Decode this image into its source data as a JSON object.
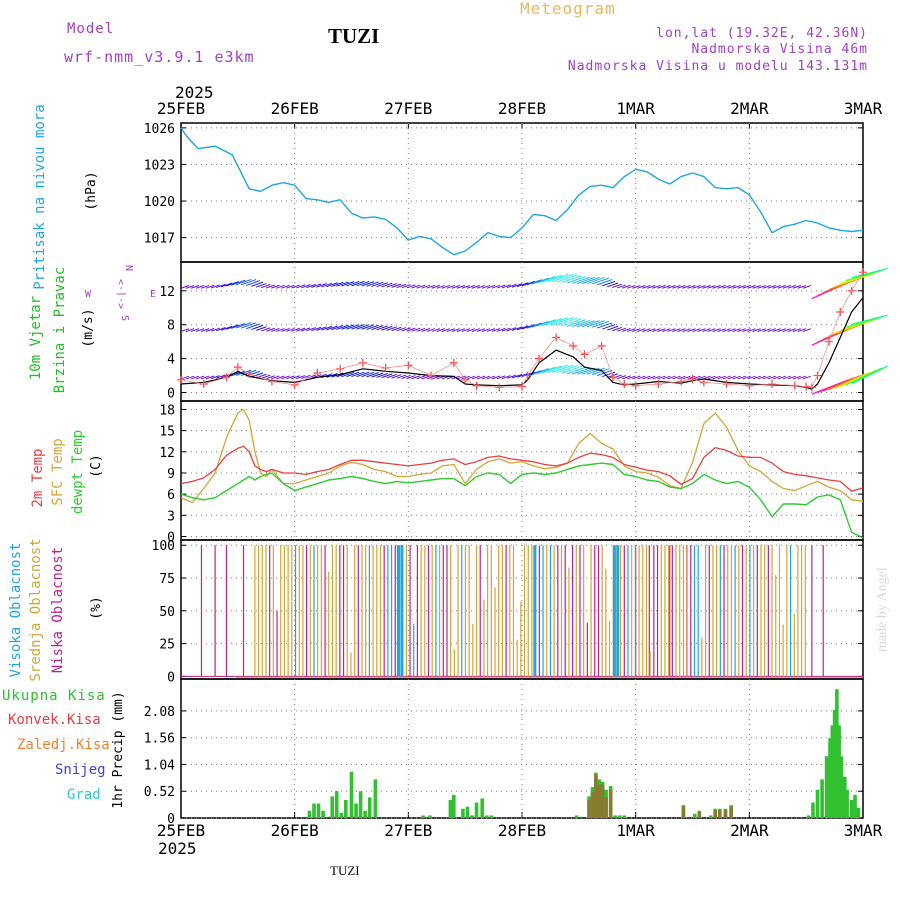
{
  "header": {
    "model_label": "Model",
    "model_name": "wrf-nmm_v3.9.1  e3km",
    "station": "TUZI",
    "title": "Meteogram",
    "lonlat": "lon,lat (19.32E, 42.36N)",
    "elevation": "Nadmorska Visina 46m",
    "model_elevation": "Nadmorska Visina u modelu 143.131m",
    "year": "2025",
    "footer_station": "TUZI",
    "watermark": "made by Angel"
  },
  "colors": {
    "pressure": "#1ea6e4",
    "temp2m": "#e84040",
    "sfc": "#d6a437",
    "dew": "#2fcc2f",
    "purple": "#a040c8",
    "total_precip": "#30c030",
    "conv_precip": "#e04040",
    "frozen_precip": "#f08030",
    "snow": "#4040e0",
    "hail": "#30c8c8"
  },
  "chart_data": [
    {
      "type": "line",
      "id": "pressure",
      "title": "Pritisak na nivou mora",
      "ylabel": "(hPa)",
      "categories": [
        "25FEB",
        "26FEB",
        "27FEB",
        "28FEB",
        "1MAR",
        "2MAR",
        "3MAR"
      ],
      "yticks": [
        1017,
        1020,
        1023,
        1026
      ],
      "ylim": [
        1015,
        1026.4
      ],
      "x": [
        0,
        0.05,
        0.15,
        0.3,
        0.45,
        0.6,
        0.7,
        0.8,
        0.9,
        1.0,
        1.1,
        1.2,
        1.3,
        1.4,
        1.5,
        1.6,
        1.7,
        1.8,
        1.9,
        2.0,
        2.1,
        2.2,
        2.3,
        2.4,
        2.5,
        2.6,
        2.7,
        2.8,
        2.9,
        3.0,
        3.1,
        3.2,
        3.3,
        3.4,
        3.5,
        3.6,
        3.7,
        3.8,
        3.9,
        4.0,
        4.1,
        4.2,
        4.3,
        4.4,
        4.5,
        4.6,
        4.7,
        4.8,
        4.9,
        5.0,
        5.1,
        5.2,
        5.3,
        5.4,
        5.5,
        5.6,
        5.7,
        5.8,
        5.9,
        6.0
      ],
      "series": [
        {
          "name": "Pressure",
          "values": [
            1026,
            1025.3,
            1024.3,
            1024.5,
            1023.8,
            1021,
            1020.8,
            1021.3,
            1021.5,
            1021.3,
            1020.2,
            1020.1,
            1019.9,
            1020.1,
            1019,
            1018.6,
            1018.7,
            1018.5,
            1017.8,
            1016.8,
            1017.1,
            1016.9,
            1016.2,
            1015.6,
            1015.9,
            1016.6,
            1017.4,
            1017.1,
            1017,
            1017.8,
            1018.9,
            1018.8,
            1018.4,
            1019.3,
            1020.5,
            1021.2,
            1021.3,
            1021.1,
            1022,
            1022.6,
            1022.4,
            1021.8,
            1021.4,
            1022,
            1022.3,
            1022,
            1021.1,
            1021,
            1021.1,
            1020.5,
            1019.1,
            1017.4,
            1017.9,
            1018.1,
            1018.4,
            1018.2,
            1017.8,
            1017.6,
            1017.5,
            1017.6
          ]
        }
      ]
    },
    {
      "type": "line",
      "id": "wind",
      "title": "10m Vjetar",
      "title2": "Brzina i Pravac",
      "ylabel": "(m/s)",
      "compass": {
        "n": "N",
        "s": "S",
        "e": "E",
        "w": "W",
        "arrow_ew": "<-|->"
      },
      "yticks": [
        0,
        4,
        8,
        12
      ],
      "ylim": [
        -1,
        15.4
      ],
      "x": [
        0,
        0.2,
        0.4,
        0.5,
        0.6,
        0.8,
        1.0,
        1.2,
        1.4,
        1.6,
        1.8,
        2.0,
        2.2,
        2.4,
        2.5,
        2.6,
        2.8,
        3.0,
        3.05,
        3.15,
        3.3,
        3.45,
        3.55,
        3.7,
        3.8,
        3.9,
        4.0,
        4.2,
        4.4,
        4.5,
        4.6,
        4.8,
        5.0,
        5.2,
        5.4,
        5.5,
        5.55,
        5.6,
        5.7,
        5.8,
        5.9,
        6.0
      ],
      "series": [
        {
          "name": "Brzina (black)",
          "values": [
            1.0,
            1.2,
            1.8,
            2.5,
            1.9,
            1.4,
            1.2,
            1.8,
            2.1,
            2.8,
            2.5,
            2.3,
            2.0,
            1.9,
            1.0,
            0.9,
            0.8,
            0.9,
            1.5,
            3.5,
            5.0,
            4.2,
            3.0,
            2.6,
            1.2,
            0.9,
            1.0,
            1.3,
            1.1,
            1.4,
            1.6,
            1.2,
            1.0,
            0.9,
            0.8,
            0.6,
            0.4,
            1.0,
            3.5,
            6.5,
            9.5,
            11.2
          ]
        },
        {
          "name": "Brzina model (red +)",
          "values": [
            1.5,
            1.0,
            1.8,
            3.0,
            2.2,
            1.3,
            0.9,
            2.3,
            2.8,
            3.5,
            2.9,
            3.2,
            2.0,
            3.5,
            1.5,
            0.8,
            0.6,
            0.7,
            2.0,
            4.0,
            6.5,
            5.5,
            4.5,
            5.5,
            1.8,
            1.0,
            0.8,
            1.0,
            1.3,
            1.6,
            1.2,
            1.0,
            0.8,
            1.0,
            0.8,
            0.7,
            0.6,
            2.0,
            6.0,
            9.5,
            12.0,
            14.2
          ]
        }
      ]
    },
    {
      "type": "line",
      "id": "temperature",
      "title": "2m Temp",
      "title2": "SFC Temp",
      "title3": "dewpt Temp",
      "ylabel": "(C)",
      "yticks": [
        0,
        3,
        6,
        9,
        12,
        15,
        18
      ],
      "ylim": [
        -0.5,
        19.2
      ],
      "x": [
        0,
        0.1,
        0.2,
        0.3,
        0.4,
        0.5,
        0.55,
        0.6,
        0.65,
        0.7,
        0.75,
        0.8,
        0.9,
        1.0,
        1.1,
        1.2,
        1.3,
        1.4,
        1.5,
        1.6,
        1.7,
        1.8,
        1.9,
        2.0,
        2.1,
        2.2,
        2.3,
        2.4,
        2.5,
        2.6,
        2.7,
        2.8,
        2.9,
        3.0,
        3.1,
        3.2,
        3.3,
        3.4,
        3.5,
        3.6,
        3.7,
        3.8,
        3.9,
        4.0,
        4.1,
        4.2,
        4.3,
        4.4,
        4.5,
        4.6,
        4.7,
        4.8,
        4.9,
        5.0,
        5.1,
        5.2,
        5.3,
        5.4,
        5.5,
        5.6,
        5.7,
        5.8,
        5.9,
        6.0
      ],
      "series": [
        {
          "name": "2m Temp",
          "values": [
            7.5,
            7.8,
            8.3,
            9.5,
            11.5,
            12.5,
            12.8,
            12.0,
            10.0,
            9.5,
            9.2,
            9.5,
            9.0,
            9.0,
            8.8,
            9.2,
            9.5,
            10.2,
            10.8,
            10.8,
            10.6,
            10.4,
            10.2,
            10.0,
            10.2,
            10.4,
            10.8,
            11.0,
            10.2,
            10.6,
            11.2,
            11.4,
            11.0,
            10.8,
            10.6,
            10.2,
            10.0,
            10.4,
            11.2,
            11.8,
            11.6,
            11.2,
            10.2,
            9.8,
            9.4,
            9.2,
            8.6,
            7.4,
            8.2,
            11.2,
            12.6,
            12.2,
            11.4,
            11.2,
            11.2,
            10.4,
            9.2,
            8.8,
            8.6,
            8.3,
            8.0,
            7.8,
            6.4,
            6.9
          ]
        },
        {
          "name": "SFC Temp",
          "values": [
            5.5,
            4.8,
            6.8,
            9.0,
            14.0,
            17.5,
            18.0,
            16.5,
            12.0,
            9.0,
            8.5,
            9.5,
            7.5,
            7.5,
            8.0,
            8.5,
            9.0,
            10.0,
            10.5,
            10.2,
            9.5,
            9.2,
            8.5,
            8.5,
            8.8,
            9.0,
            10.0,
            10.2,
            7.5,
            9.5,
            10.6,
            11.0,
            10.4,
            10.6,
            10.0,
            9.6,
            9.8,
            10.4,
            13.2,
            14.6,
            13.2,
            12.4,
            10.0,
            9.2,
            9.0,
            8.4,
            7.2,
            6.8,
            10.5,
            16.0,
            17.5,
            15.5,
            12.2,
            10.0,
            9.2,
            7.8,
            6.8,
            6.5,
            7.2,
            7.8,
            7.0,
            6.5,
            5.2,
            5.0
          ]
        },
        {
          "name": "dewpt Temp",
          "values": [
            6.0,
            5.5,
            5.2,
            5.5,
            6.5,
            7.5,
            8.0,
            8.5,
            8.0,
            8.5,
            8.8,
            9.0,
            7.5,
            6.5,
            7.0,
            7.5,
            8.0,
            8.2,
            8.5,
            8.2,
            7.8,
            7.5,
            7.8,
            7.6,
            7.8,
            8.0,
            8.2,
            8.2,
            7.2,
            8.5,
            9.0,
            8.8,
            7.5,
            8.8,
            9.0,
            8.8,
            9.0,
            9.5,
            10.0,
            10.2,
            10.4,
            10.2,
            8.8,
            8.5,
            8.0,
            7.8,
            7.0,
            6.8,
            7.5,
            8.8,
            8.0,
            7.5,
            7.8,
            7.0,
            5.2,
            2.8,
            4.6,
            4.6,
            4.5,
            5.6,
            5.9,
            5.2,
            0.6,
            -0.2
          ]
        }
      ]
    },
    {
      "type": "bar",
      "id": "cloud",
      "title": "Visoka Oblacnost",
      "title2": "Srednja Oblacnost",
      "title3": "Niska Oblacnost",
      "ylabel": "(%)",
      "yticks": [
        0,
        25,
        50,
        75,
        100
      ],
      "ylim": [
        -2,
        104
      ]
    },
    {
      "type": "bar",
      "id": "precip",
      "ylabel": "1hr Precip (mm)",
      "legend": [
        "Ukupna Kisa",
        "Konvek.Kisa",
        "Zaledj.Kisa",
        "Snijeg",
        "Grad"
      ],
      "yticks": [
        0,
        0.52,
        1.04,
        1.56,
        2.08
      ],
      "ytick_labels": [
        "0",
        "0.52",
        "1.04",
        "1.56",
        "2.08"
      ],
      "ylim": [
        0,
        2.7
      ],
      "x": [
        1.13,
        1.17,
        1.21,
        1.25,
        1.33,
        1.37,
        1.41,
        1.45,
        1.5,
        1.54,
        1.58,
        1.62,
        1.66,
        1.71,
        2.13,
        2.19,
        2.37,
        2.4,
        2.48,
        2.52,
        2.56,
        2.6,
        2.65,
        2.69,
        2.73,
        3.48,
        3.59,
        3.62,
        3.65,
        3.68,
        3.71,
        3.74,
        3.78,
        3.82,
        3.86,
        3.9,
        4.42,
        4.52,
        4.56,
        4.66,
        4.7,
        4.74,
        4.79,
        4.84,
        5.52,
        5.56,
        5.6,
        5.64,
        5.68,
        5.71,
        5.73,
        5.75,
        5.77,
        5.79,
        5.81,
        5.84,
        5.86,
        5.9,
        5.93,
        5.96
      ],
      "series": [
        {
          "name": "Ukupna Kisa",
          "values": [
            0.14,
            0.28,
            0.28,
            0.14,
            0.42,
            0.52,
            0.1,
            0.35,
            0.9,
            0.28,
            0.52,
            0.14,
            0.4,
            0.75,
            0.05,
            0.05,
            0.35,
            0.45,
            0.18,
            0.22,
            0.05,
            0.3,
            0.38,
            0.05,
            0.05,
            0.05,
            0.42,
            0.6,
            0.88,
            0.75,
            0.7,
            0.55,
            0.62,
            0.05,
            0.05,
            0.05,
            0.25,
            0.08,
            0.14,
            0.05,
            0.18,
            0.18,
            0.18,
            0.25,
            0.05,
            0.3,
            0.55,
            0.75,
            1.2,
            1.55,
            1.8,
            2.1,
            2.5,
            1.8,
            1.2,
            0.8,
            0.55,
            0.35,
            0.45,
            0.2
          ]
        },
        {
          "name": "Konvek.Kisa",
          "values": [
            0,
            0,
            0,
            0,
            0,
            0,
            0,
            0,
            0,
            0,
            0,
            0,
            0,
            0,
            0,
            0,
            0,
            0,
            0,
            0,
            0,
            0,
            0,
            0,
            0,
            0,
            0.35,
            0.5,
            0.85,
            0.65,
            0.65,
            0.4,
            0.55,
            0,
            0,
            0,
            0.22,
            0,
            0.12,
            0,
            0.15,
            0.15,
            0.15,
            0.22,
            0,
            0,
            0,
            0,
            0,
            0,
            0,
            0,
            0,
            0,
            0,
            0,
            0,
            0,
            0,
            0
          ]
        }
      ]
    }
  ]
}
